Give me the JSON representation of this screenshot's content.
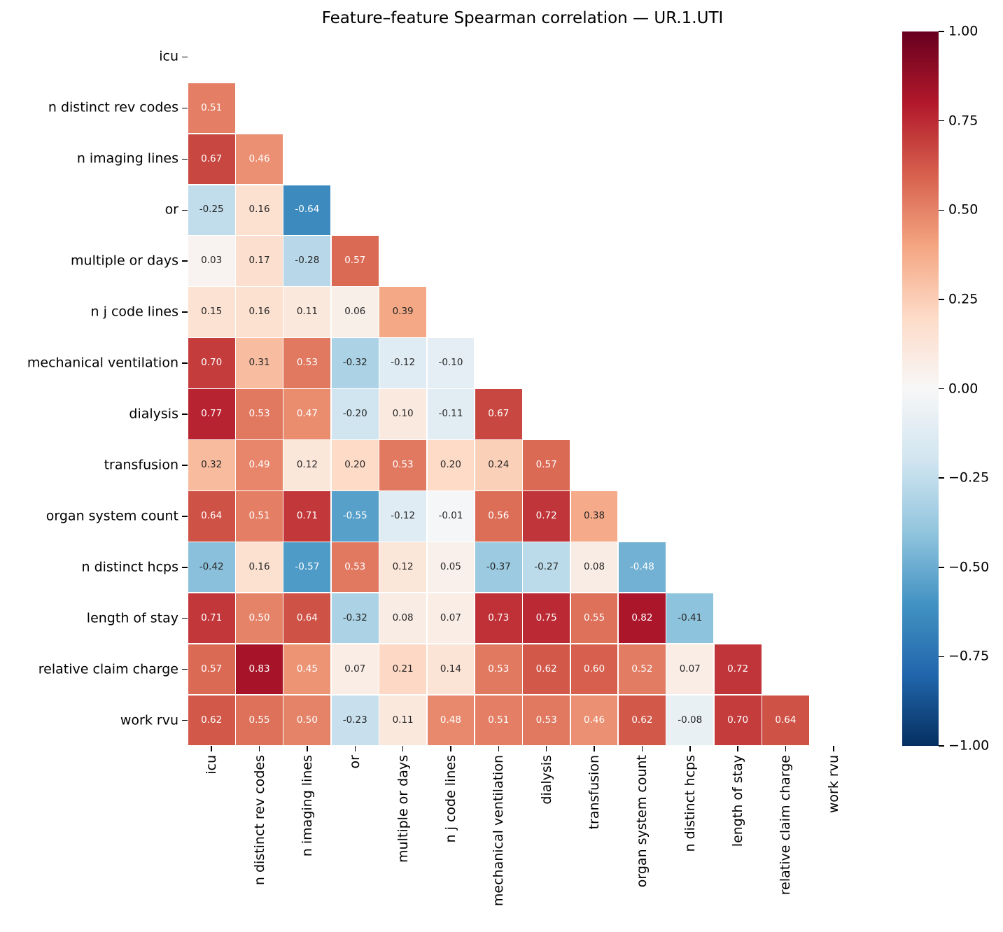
{
  "chart_data": {
    "type": "heatmap",
    "title": "Feature–feature Spearman correlation — UR.1.UTI",
    "features": [
      "icu",
      "n distinct rev codes",
      "n imaging lines",
      "or",
      "multiple or days",
      "n j code lines",
      "mechanical ventilation",
      "dialysis",
      "transfusion",
      "organ system count",
      "n distinct hcps",
      "length of stay",
      "relative claim charge",
      "work rvu"
    ],
    "matrix_lower_triangle": [
      [],
      [
        0.51
      ],
      [
        0.67,
        0.46
      ],
      [
        -0.25,
        0.16,
        -0.64
      ],
      [
        0.03,
        0.17,
        -0.28,
        0.57
      ],
      [
        0.15,
        0.16,
        0.11,
        0.06,
        0.39
      ],
      [
        0.7,
        0.31,
        0.53,
        -0.32,
        -0.12,
        -0.1
      ],
      [
        0.77,
        0.53,
        0.47,
        -0.2,
        0.1,
        -0.11,
        0.67
      ],
      [
        0.32,
        0.49,
        0.12,
        0.2,
        0.53,
        0.2,
        0.24,
        0.57
      ],
      [
        0.64,
        0.51,
        0.71,
        -0.55,
        -0.12,
        -0.01,
        0.56,
        0.72,
        0.38
      ],
      [
        -0.42,
        0.16,
        -0.57,
        0.53,
        0.12,
        0.05,
        -0.37,
        -0.27,
        0.08,
        -0.48
      ],
      [
        0.71,
        0.5,
        0.64,
        -0.32,
        0.08,
        0.07,
        0.73,
        0.75,
        0.55,
        0.82,
        -0.41
      ],
      [
        0.57,
        0.83,
        0.45,
        0.07,
        0.21,
        0.14,
        0.53,
        0.62,
        0.6,
        0.52,
        0.07,
        0.72
      ],
      [
        0.62,
        0.55,
        0.5,
        -0.23,
        0.11,
        0.48,
        0.51,
        0.53,
        0.46,
        0.62,
        -0.08,
        0.7,
        0.64
      ]
    ],
    "mask": "upper triangle and diagonal hidden",
    "value_label_format": ".2f",
    "vmin": -1,
    "vmax": 1,
    "colormap": "RdBu_r",
    "colormap_anchors_blue_to_red": [
      "#053061",
      "#2166ac",
      "#4393c3",
      "#92c5de",
      "#d1e5f0",
      "#f7f7f7",
      "#fddbc7",
      "#f4a582",
      "#d6604d",
      "#b2182b",
      "#67001f"
    ],
    "gridline_color": "#ffffff",
    "annotation_text_colors": {
      "on_light": "#262626",
      "on_dark": "#ffffff"
    },
    "luminance_threshold": 0.408,
    "legend_position": "right colorbar",
    "grid": false,
    "colorbar": {
      "orientation": "vertical",
      "tick_labels": [
        "1.00",
        "0.75",
        "0.50",
        "0.25",
        "0.00",
        "−0.25",
        "−0.50",
        "−0.75",
        "−1.00"
      ]
    }
  }
}
